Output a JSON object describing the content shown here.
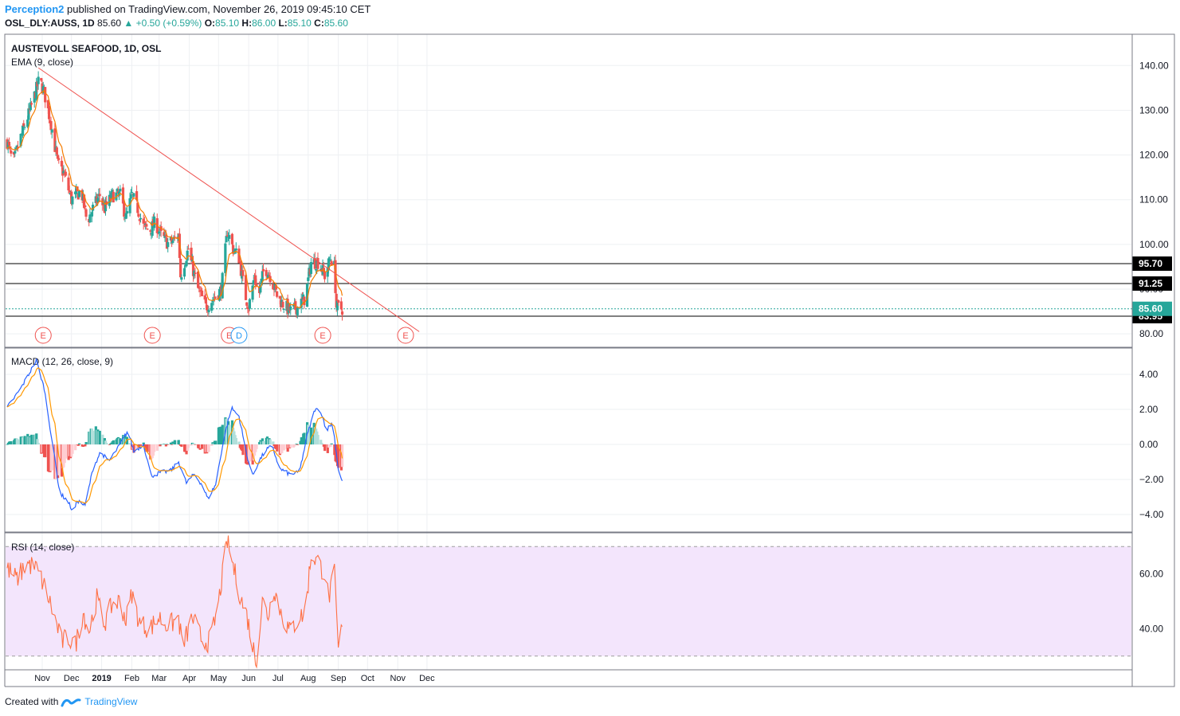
{
  "header": {
    "author": "Perception2",
    "published": "published on TradingView.com, November 26, 2019 09:45:10 CET",
    "symbol": "OSL_DLY:AUSS, 1D",
    "last": "85.60",
    "change": "▲ +0.50 (+0.59%)",
    "o_label": "O:",
    "o": "85.10",
    "h_label": "H:",
    "h": "86.00",
    "l_label": "L:",
    "l": "85.10",
    "c_label": "C:",
    "c": "85.60"
  },
  "footer": {
    "created_with": "Created with",
    "brand": "TradingView"
  },
  "colors": {
    "up": "#26a69a",
    "down": "#ef5350",
    "ema": "#f57c00",
    "trendline": "#ef5350",
    "macd": "#2962ff",
    "signal": "#ff9800",
    "rsi": "#ff7043",
    "rsi_band": "#f3e5fc"
  },
  "chart_data": {
    "type": "candlestick",
    "title": "AUSTEVOLL SEAFOOD, 1D, OSL",
    "x_labels": [
      "Nov",
      "Dec",
      "2019",
      "Feb",
      "Mar",
      "Apr",
      "May",
      "Jun",
      "Jul",
      "Aug",
      "Sep",
      "Oct",
      "Nov",
      "Dec"
    ],
    "price_axis": {
      "ticks": [
        80,
        90,
        100,
        110,
        120,
        130,
        140
      ],
      "labels": [
        "80.00",
        "90.00",
        "100.00",
        "110.00",
        "120.00",
        "130.00",
        "140.00"
      ],
      "range": [
        77,
        147
      ]
    },
    "ema_label": "EMA (9, close)",
    "price_anchors": [
      {
        "d": 0,
        "p": 123
      },
      {
        "d": 6,
        "p": 118
      },
      {
        "d": 14,
        "p": 124
      },
      {
        "d": 25,
        "p": 131
      },
      {
        "d": 33,
        "p": 137
      },
      {
        "d": 38,
        "p": 134
      },
      {
        "d": 45,
        "p": 127
      },
      {
        "d": 52,
        "p": 118
      },
      {
        "d": 58,
        "p": 116
      },
      {
        "d": 66,
        "p": 110
      },
      {
        "d": 76,
        "p": 112
      },
      {
        "d": 82,
        "p": 105
      },
      {
        "d": 88,
        "p": 108
      },
      {
        "d": 95,
        "p": 111
      },
      {
        "d": 100,
        "p": 108
      },
      {
        "d": 108,
        "p": 111
      },
      {
        "d": 116,
        "p": 111
      },
      {
        "d": 122,
        "p": 106
      },
      {
        "d": 128,
        "p": 111
      },
      {
        "d": 134,
        "p": 108
      },
      {
        "d": 140,
        "p": 104
      },
      {
        "d": 146,
        "p": 103
      },
      {
        "d": 152,
        "p": 105
      },
      {
        "d": 158,
        "p": 102
      },
      {
        "d": 166,
        "p": 100
      },
      {
        "d": 176,
        "p": 102
      },
      {
        "d": 178,
        "p": 93
      },
      {
        "d": 186,
        "p": 99
      },
      {
        "d": 190,
        "p": 95
      },
      {
        "d": 196,
        "p": 90
      },
      {
        "d": 204,
        "p": 86
      },
      {
        "d": 212,
        "p": 88
      },
      {
        "d": 220,
        "p": 90
      },
      {
        "d": 226,
        "p": 103
      },
      {
        "d": 232,
        "p": 99
      },
      {
        "d": 238,
        "p": 97
      },
      {
        "d": 244,
        "p": 89
      },
      {
        "d": 248,
        "p": 86
      },
      {
        "d": 254,
        "p": 93
      },
      {
        "d": 258,
        "p": 88
      },
      {
        "d": 264,
        "p": 95
      },
      {
        "d": 270,
        "p": 93
      },
      {
        "d": 278,
        "p": 88
      },
      {
        "d": 286,
        "p": 86
      },
      {
        "d": 292,
        "p": 85
      },
      {
        "d": 298,
        "p": 86
      },
      {
        "d": 306,
        "p": 88
      },
      {
        "d": 312,
        "p": 96
      },
      {
        "d": 320,
        "p": 96
      },
      {
        "d": 326,
        "p": 93
      },
      {
        "d": 332,
        "p": 97
      },
      {
        "d": 336,
        "p": 95
      },
      {
        "d": 338,
        "p": 86
      },
      {
        "d": 344,
        "p": 85.6
      }
    ],
    "horizontal_levels": [
      {
        "price": 95.7,
        "label": "95.70"
      },
      {
        "price": 91.25,
        "label": "91.25"
      },
      {
        "price": 83.95,
        "label": "83.95"
      }
    ],
    "last_price": {
      "price": 85.6,
      "label": "85.60"
    },
    "trendline": [
      {
        "date": "2018-11-02",
        "price": 139.5
      },
      {
        "date": "2019-11-28",
        "price": 80.5
      }
    ],
    "events": [
      {
        "label": "E",
        "date": "2018-11-07"
      },
      {
        "label": "E",
        "date": "2019-02-27"
      },
      {
        "label": "E",
        "date": "2019-05-17"
      },
      {
        "label": "D",
        "date": "2019-05-27"
      },
      {
        "label": "E",
        "date": "2019-08-21"
      },
      {
        "label": "E",
        "date": "2019-11-14"
      }
    ],
    "macd": {
      "label": "MACD (12, 26, close, 9)",
      "ticks": [
        -4,
        -2,
        0,
        2,
        4
      ],
      "tick_labels": [
        "−4.00",
        "−2.00",
        "0.00",
        "2.00",
        "4.00"
      ],
      "range": [
        -5,
        5.5
      ],
      "anchors": [
        {
          "d": 0,
          "m": 2.1
        },
        {
          "d": 14,
          "m": 3.2
        },
        {
          "d": 30,
          "m": 4.8
        },
        {
          "d": 38,
          "m": 3.2
        },
        {
          "d": 48,
          "m": -0.5
        },
        {
          "d": 54,
          "m": -2.8
        },
        {
          "d": 62,
          "m": -3.2
        },
        {
          "d": 68,
          "m": -3.9
        },
        {
          "d": 72,
          "m": -3.2
        },
        {
          "d": 80,
          "m": -3.5
        },
        {
          "d": 88,
          "m": -1.4
        },
        {
          "d": 96,
          "m": -0.4
        },
        {
          "d": 104,
          "m": -1.0
        },
        {
          "d": 116,
          "m": 0.0
        },
        {
          "d": 124,
          "m": 0.8
        },
        {
          "d": 130,
          "m": -0.4
        },
        {
          "d": 140,
          "m": 0.0
        },
        {
          "d": 148,
          "m": -1.8
        },
        {
          "d": 158,
          "m": -1.6
        },
        {
          "d": 168,
          "m": -1.5
        },
        {
          "d": 176,
          "m": -1.0
        },
        {
          "d": 184,
          "m": -2.2
        },
        {
          "d": 192,
          "m": -1.7
        },
        {
          "d": 200,
          "m": -2.3
        },
        {
          "d": 206,
          "m": -3.1
        },
        {
          "d": 214,
          "m": -2.3
        },
        {
          "d": 222,
          "m": 0.2
        },
        {
          "d": 230,
          "m": 2.1
        },
        {
          "d": 238,
          "m": 1.6
        },
        {
          "d": 246,
          "m": -0.6
        },
        {
          "d": 252,
          "m": -1.8
        },
        {
          "d": 258,
          "m": -1.0
        },
        {
          "d": 266,
          "m": -0.3
        },
        {
          "d": 272,
          "m": -0.1
        },
        {
          "d": 280,
          "m": -1.4
        },
        {
          "d": 290,
          "m": -1.7
        },
        {
          "d": 300,
          "m": -1.6
        },
        {
          "d": 308,
          "m": 0.5
        },
        {
          "d": 316,
          "m": 2.0
        },
        {
          "d": 322,
          "m": 1.9
        },
        {
          "d": 328,
          "m": 0.8
        },
        {
          "d": 334,
          "m": 1.3
        },
        {
          "d": 340,
          "m": -1.4
        },
        {
          "d": 344,
          "m": -2.1
        }
      ]
    },
    "rsi": {
      "label": "RSI (14, close)",
      "ticks": [
        40,
        60
      ],
      "tick_labels": [
        "40.00",
        "60.00"
      ],
      "band": [
        30,
        70
      ],
      "range": [
        25,
        75
      ],
      "anchors": [
        {
          "d": 0,
          "r": 62
        },
        {
          "d": 10,
          "r": 58
        },
        {
          "d": 20,
          "r": 64
        },
        {
          "d": 30,
          "r": 62
        },
        {
          "d": 40,
          "r": 54
        },
        {
          "d": 48,
          "r": 45
        },
        {
          "d": 56,
          "r": 35
        },
        {
          "d": 62,
          "r": 37
        },
        {
          "d": 70,
          "r": 34
        },
        {
          "d": 78,
          "r": 46
        },
        {
          "d": 84,
          "r": 39
        },
        {
          "d": 92,
          "r": 51
        },
        {
          "d": 100,
          "r": 42
        },
        {
          "d": 108,
          "r": 49
        },
        {
          "d": 116,
          "r": 50
        },
        {
          "d": 122,
          "r": 43
        },
        {
          "d": 128,
          "r": 53
        },
        {
          "d": 136,
          "r": 42
        },
        {
          "d": 146,
          "r": 40
        },
        {
          "d": 156,
          "r": 44
        },
        {
          "d": 166,
          "r": 41
        },
        {
          "d": 176,
          "r": 44
        },
        {
          "d": 180,
          "r": 33
        },
        {
          "d": 190,
          "r": 44
        },
        {
          "d": 200,
          "r": 36
        },
        {
          "d": 208,
          "r": 35
        },
        {
          "d": 216,
          "r": 47
        },
        {
          "d": 222,
          "r": 62
        },
        {
          "d": 226,
          "r": 72
        },
        {
          "d": 232,
          "r": 63
        },
        {
          "d": 240,
          "r": 51
        },
        {
          "d": 246,
          "r": 45
        },
        {
          "d": 252,
          "r": 34
        },
        {
          "d": 256,
          "r": 28
        },
        {
          "d": 262,
          "r": 50
        },
        {
          "d": 268,
          "r": 45
        },
        {
          "d": 274,
          "r": 55
        },
        {
          "d": 282,
          "r": 45
        },
        {
          "d": 290,
          "r": 39
        },
        {
          "d": 298,
          "r": 43
        },
        {
          "d": 306,
          "r": 46
        },
        {
          "d": 312,
          "r": 67
        },
        {
          "d": 318,
          "r": 65
        },
        {
          "d": 326,
          "r": 60
        },
        {
          "d": 330,
          "r": 51
        },
        {
          "d": 336,
          "r": 60
        },
        {
          "d": 340,
          "r": 32
        },
        {
          "d": 344,
          "r": 41
        }
      ]
    }
  }
}
